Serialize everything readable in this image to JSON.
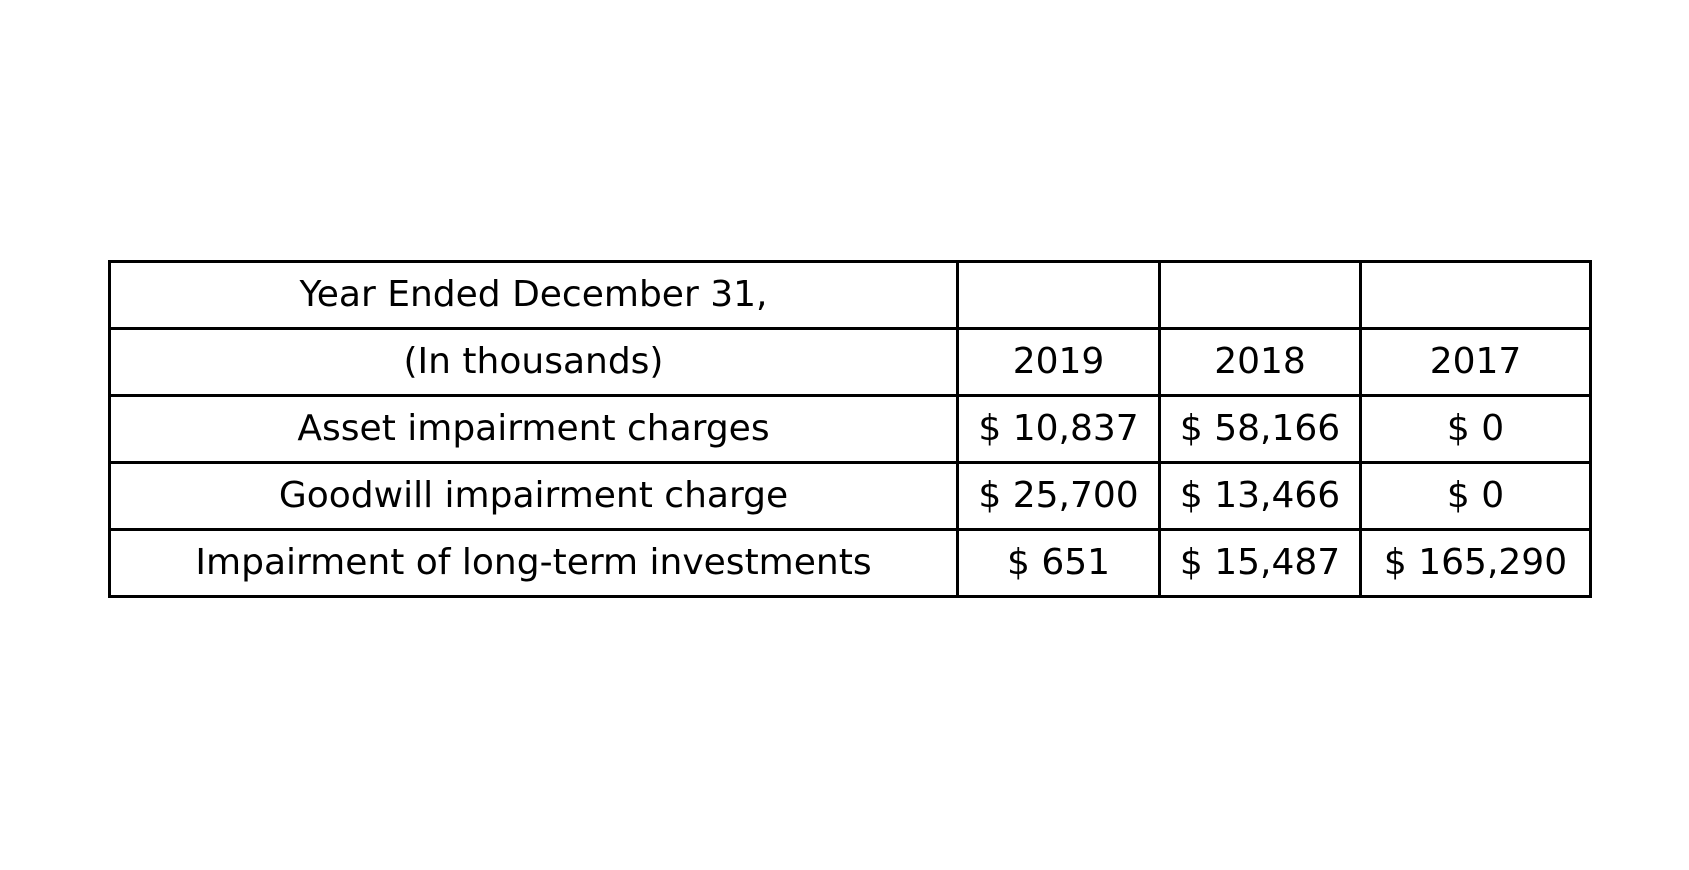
{
  "table": {
    "header_row": [
      "Year Ended December 31,",
      "",
      "",
      ""
    ],
    "units_row": [
      "(In thousands)",
      "2019",
      "2018",
      "2017"
    ],
    "rows": [
      [
        "Asset impairment charges",
        "$ 10,837",
        "$ 58,166",
        "$ 0"
      ],
      [
        "Goodwill impairment charge",
        "$ 25,700",
        "$ 13,466",
        "$ 0"
      ],
      [
        "Impairment of long-term investments",
        "$ 651",
        "$ 15,487",
        "$ 165,290"
      ]
    ]
  }
}
